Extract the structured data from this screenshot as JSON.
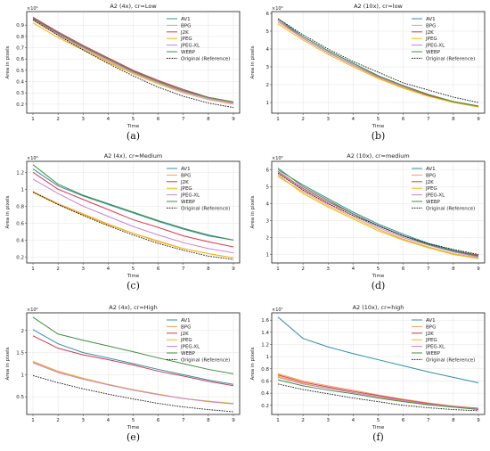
{
  "colors": {
    "AV1": "#2e8fa8",
    "BPG": "#f0a35a",
    "J2K": "#d9374a",
    "JPEG": "#f5b800",
    "JPEG-XL": "#c583d6",
    "WEBP": "#3f8f3f",
    "Original (Reference)": "#111111"
  },
  "chart_data": [
    {
      "type": "line",
      "caption": "(a)",
      "title": "A2 (4x), cr=Low",
      "xlabel": "Time",
      "ylabel": "Area in pixels",
      "multiplier": "×10⁶",
      "x": [
        1,
        2,
        3,
        4,
        5,
        6,
        7,
        8,
        9
      ],
      "ylim": [
        0.12,
        1.02
      ],
      "yticks": [
        0.2,
        0.3,
        0.4,
        0.5,
        0.6,
        0.7,
        0.8,
        0.9
      ],
      "grid": true,
      "legend": "top-right",
      "series": [
        {
          "name": "AV1",
          "values": [
            0.96,
            0.83,
            0.71,
            0.6,
            0.49,
            0.4,
            0.32,
            0.25,
            0.21
          ]
        },
        {
          "name": "BPG",
          "values": [
            0.94,
            0.81,
            0.69,
            0.58,
            0.47,
            0.38,
            0.3,
            0.24,
            0.2
          ]
        },
        {
          "name": "J2K",
          "values": [
            0.97,
            0.84,
            0.72,
            0.61,
            0.5,
            0.41,
            0.33,
            0.26,
            0.22
          ]
        },
        {
          "name": "JPEG",
          "values": [
            0.92,
            0.79,
            0.68,
            0.57,
            0.47,
            0.38,
            0.31,
            0.25,
            0.21
          ]
        },
        {
          "name": "JPEG-XL",
          "values": [
            0.95,
            0.82,
            0.7,
            0.59,
            0.48,
            0.39,
            0.31,
            0.25,
            0.21
          ]
        },
        {
          "name": "WEBP",
          "values": [
            0.96,
            0.83,
            0.71,
            0.6,
            0.49,
            0.4,
            0.32,
            0.26,
            0.22
          ]
        },
        {
          "name": "Original (Reference)",
          "values": [
            0.95,
            0.81,
            0.68,
            0.56,
            0.45,
            0.35,
            0.27,
            0.21,
            0.17
          ]
        }
      ]
    },
    {
      "type": "line",
      "caption": "(b)",
      "title": "A2 (10x), cr=low",
      "xlabel": "Time",
      "ylabel": "Area in pixels",
      "multiplier": "×10⁶",
      "x": [
        1,
        2,
        3,
        4,
        5,
        6,
        7,
        8,
        9
      ],
      "ylim": [
        0.4,
        6.1
      ],
      "yticks": [
        1,
        2,
        3,
        4,
        5,
        6
      ],
      "grid": true,
      "legend": "top-right",
      "series": [
        {
          "name": "AV1",
          "values": [
            5.6,
            4.7,
            3.9,
            3.2,
            2.5,
            1.9,
            1.4,
            1.05,
            0.75
          ]
        },
        {
          "name": "BPG",
          "values": [
            5.5,
            4.6,
            3.8,
            3.1,
            2.4,
            1.85,
            1.4,
            1.0,
            0.75
          ]
        },
        {
          "name": "J2K",
          "values": [
            5.6,
            4.6,
            3.8,
            3.1,
            2.45,
            1.9,
            1.4,
            1.05,
            0.8
          ]
        },
        {
          "name": "JPEG",
          "values": [
            5.4,
            4.5,
            3.7,
            3.0,
            2.35,
            1.8,
            1.35,
            1.0,
            0.75
          ]
        },
        {
          "name": "JPEG-XL",
          "values": [
            5.6,
            4.6,
            3.8,
            3.1,
            2.45,
            1.9,
            1.45,
            1.05,
            0.8
          ]
        },
        {
          "name": "WEBP",
          "values": [
            5.7,
            4.7,
            3.9,
            3.2,
            2.5,
            1.95,
            1.45,
            1.05,
            0.8
          ]
        },
        {
          "name": "Original (Reference)",
          "values": [
            5.7,
            4.8,
            4.0,
            3.3,
            2.7,
            2.1,
            1.7,
            1.3,
            1.0
          ]
        }
      ]
    },
    {
      "type": "line",
      "caption": "(c)",
      "title": "A2 (4x), cr=Medium",
      "xlabel": "Time",
      "ylabel": "Area in pixels",
      "multiplier": "×10⁶",
      "x": [
        1,
        2,
        3,
        4,
        5,
        6,
        7,
        8,
        9
      ],
      "ylim": [
        0.13,
        1.33
      ],
      "yticks": [
        0.2,
        0.4,
        0.6,
        0.8,
        1.0,
        1.2
      ],
      "grid": true,
      "legend": "top-right",
      "series": [
        {
          "name": "AV1",
          "values": [
            1.24,
            1.04,
            0.92,
            0.82,
            0.72,
            0.62,
            0.53,
            0.45,
            0.4
          ]
        },
        {
          "name": "BPG",
          "values": [
            0.97,
            0.83,
            0.71,
            0.59,
            0.48,
            0.39,
            0.3,
            0.24,
            0.19
          ]
        },
        {
          "name": "J2K",
          "values": [
            1.2,
            1.0,
            0.88,
            0.76,
            0.64,
            0.55,
            0.45,
            0.38,
            0.32
          ]
        },
        {
          "name": "JPEG",
          "values": [
            0.96,
            0.82,
            0.7,
            0.58,
            0.48,
            0.38,
            0.3,
            0.24,
            0.19
          ]
        },
        {
          "name": "JPEG-XL",
          "values": [
            1.12,
            0.95,
            0.8,
            0.68,
            0.56,
            0.46,
            0.37,
            0.3,
            0.25
          ]
        },
        {
          "name": "WEBP",
          "values": [
            1.29,
            1.06,
            0.93,
            0.83,
            0.73,
            0.63,
            0.54,
            0.46,
            0.4
          ]
        },
        {
          "name": "Original (Reference)",
          "values": [
            0.97,
            0.82,
            0.69,
            0.57,
            0.46,
            0.36,
            0.28,
            0.21,
            0.17
          ]
        }
      ]
    },
    {
      "type": "line",
      "caption": "(d)",
      "title": "A2 (10x), cr=medium",
      "xlabel": "Time",
      "ylabel": "Area in pixels",
      "multiplier": "×10⁶",
      "x": [
        1,
        2,
        3,
        4,
        5,
        6,
        7,
        8,
        9
      ],
      "ylim": [
        0.5,
        6.5
      ],
      "yticks": [
        1,
        2,
        3,
        4,
        5,
        6
      ],
      "grid": true,
      "legend": "top-right",
      "series": [
        {
          "name": "AV1",
          "values": [
            6.0,
            5.1,
            4.3,
            3.5,
            2.8,
            2.2,
            1.65,
            1.25,
            0.95
          ]
        },
        {
          "name": "BPG",
          "values": [
            5.6,
            4.7,
            3.9,
            3.2,
            2.5,
            1.9,
            1.45,
            1.05,
            0.8
          ]
        },
        {
          "name": "J2K",
          "values": [
            5.9,
            4.9,
            4.1,
            3.4,
            2.7,
            2.1,
            1.6,
            1.2,
            0.95
          ]
        },
        {
          "name": "JPEG",
          "values": [
            5.7,
            4.6,
            3.8,
            3.1,
            2.4,
            1.85,
            1.4,
            1.0,
            0.75
          ]
        },
        {
          "name": "JPEG-XL",
          "values": [
            5.8,
            4.8,
            4.0,
            3.3,
            2.6,
            2.0,
            1.55,
            1.15,
            0.85
          ]
        },
        {
          "name": "WEBP",
          "values": [
            6.1,
            5.0,
            4.2,
            3.4,
            2.7,
            2.1,
            1.6,
            1.2,
            0.9
          ]
        },
        {
          "name": "Original (Reference)",
          "values": [
            5.8,
            4.8,
            4.0,
            3.3,
            2.7,
            2.1,
            1.65,
            1.3,
            1.0
          ]
        }
      ]
    },
    {
      "type": "line",
      "caption": "(e)",
      "title": "A2 (4x), cr=High",
      "xlabel": "Time",
      "ylabel": "Area in pixels",
      "multiplier": "×10⁶",
      "x": [
        1,
        2,
        3,
        4,
        5,
        6,
        7,
        8,
        9
      ],
      "ylim": [
        0.1,
        2.4
      ],
      "yticks": [
        0.5,
        1.0,
        1.5,
        2.0
      ],
      "grid": true,
      "legend": "top-right",
      "series": [
        {
          "name": "AV1",
          "values": [
            2.02,
            1.7,
            1.5,
            1.38,
            1.25,
            1.12,
            1.0,
            0.88,
            0.78
          ]
        },
        {
          "name": "BPG",
          "values": [
            1.3,
            1.08,
            0.92,
            0.78,
            0.66,
            0.56,
            0.46,
            0.4,
            0.34
          ]
        },
        {
          "name": "J2K",
          "values": [
            1.88,
            1.6,
            1.45,
            1.34,
            1.22,
            1.08,
            0.97,
            0.85,
            0.75
          ]
        },
        {
          "name": "JPEG",
          "values": [
            1.28,
            1.06,
            0.92,
            0.78,
            0.66,
            0.56,
            0.46,
            0.4,
            0.35
          ]
        },
        {
          "name": "JPEG-XL",
          "values": [
            1.27,
            1.05,
            0.9,
            0.77,
            0.65,
            0.55,
            0.46,
            0.39,
            0.34
          ]
        },
        {
          "name": "WEBP",
          "values": [
            2.3,
            1.92,
            1.78,
            1.65,
            1.52,
            1.38,
            1.25,
            1.12,
            1.02
          ]
        },
        {
          "name": "Original (Reference)",
          "values": [
            0.98,
            0.82,
            0.68,
            0.56,
            0.45,
            0.35,
            0.27,
            0.21,
            0.16
          ]
        }
      ]
    },
    {
      "type": "line",
      "caption": "(f)",
      "title": "A2 (10x), cr=high",
      "xlabel": "Time",
      "ylabel": "Area in pixels",
      "multiplier": "×10⁷",
      "x": [
        1,
        2,
        3,
        4,
        5,
        6,
        7,
        8,
        9
      ],
      "ylim": [
        0.05,
        1.72
      ],
      "yticks": [
        0.2,
        0.4,
        0.6,
        0.8,
        1.0,
        1.2,
        1.4,
        1.6
      ],
      "grid": true,
      "legend": "top-right",
      "series": [
        {
          "name": "AV1",
          "values": [
            1.65,
            1.3,
            1.16,
            1.05,
            0.95,
            0.85,
            0.75,
            0.66,
            0.57
          ]
        },
        {
          "name": "BPG",
          "values": [
            0.72,
            0.6,
            0.52,
            0.45,
            0.37,
            0.3,
            0.24,
            0.19,
            0.15
          ]
        },
        {
          "name": "J2K",
          "values": [
            0.7,
            0.58,
            0.5,
            0.43,
            0.36,
            0.29,
            0.23,
            0.18,
            0.15
          ]
        },
        {
          "name": "JPEG",
          "values": [
            0.68,
            0.56,
            0.48,
            0.41,
            0.34,
            0.27,
            0.22,
            0.17,
            0.14
          ]
        },
        {
          "name": "JPEG-XL",
          "values": [
            0.66,
            0.55,
            0.48,
            0.41,
            0.34,
            0.28,
            0.22,
            0.18,
            0.14
          ]
        },
        {
          "name": "WEBP",
          "values": [
            0.62,
            0.52,
            0.45,
            0.39,
            0.32,
            0.26,
            0.21,
            0.17,
            0.13
          ]
        },
        {
          "name": "Original (Reference)",
          "values": [
            0.55,
            0.46,
            0.39,
            0.32,
            0.26,
            0.2,
            0.16,
            0.13,
            0.11
          ]
        }
      ]
    }
  ]
}
